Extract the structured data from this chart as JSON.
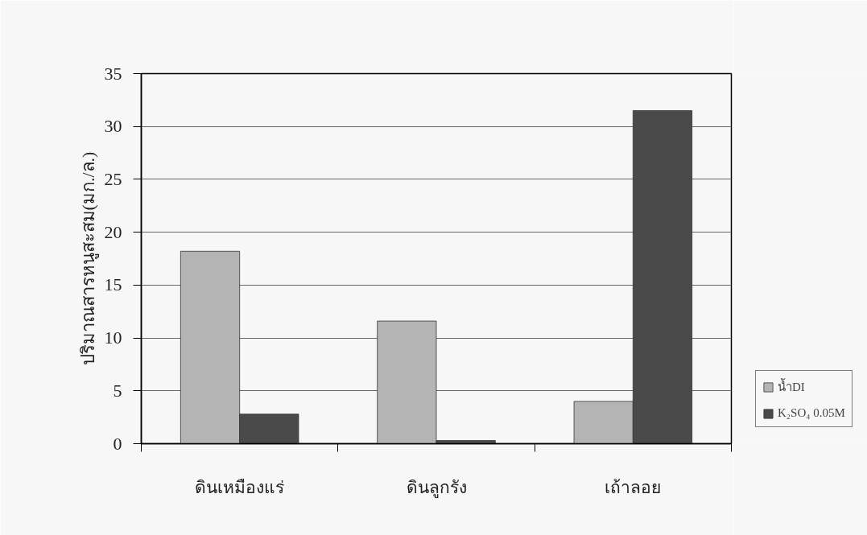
{
  "chart_data": {
    "type": "bar",
    "ylabel": "ปริมาณสารหนูสะสม(มก./ล.)",
    "categories": [
      "ดินเหมืองแร่",
      "ดินลูกรัง",
      "เถ้าลอย"
    ],
    "series": [
      {
        "name": "น้ำDI",
        "color": "#b4b4b4",
        "values": [
          18.2,
          11.6,
          4.0
        ]
      },
      {
        "name": "K₂SO₄ 0.05M",
        "color": "#4a4a4a",
        "values": [
          2.8,
          0.3,
          31.5
        ]
      }
    ],
    "ylim": [
      0,
      35
    ],
    "yticks": [
      0,
      5,
      10,
      15,
      20,
      25,
      30,
      35
    ],
    "grid": "y",
    "legend": "right"
  }
}
